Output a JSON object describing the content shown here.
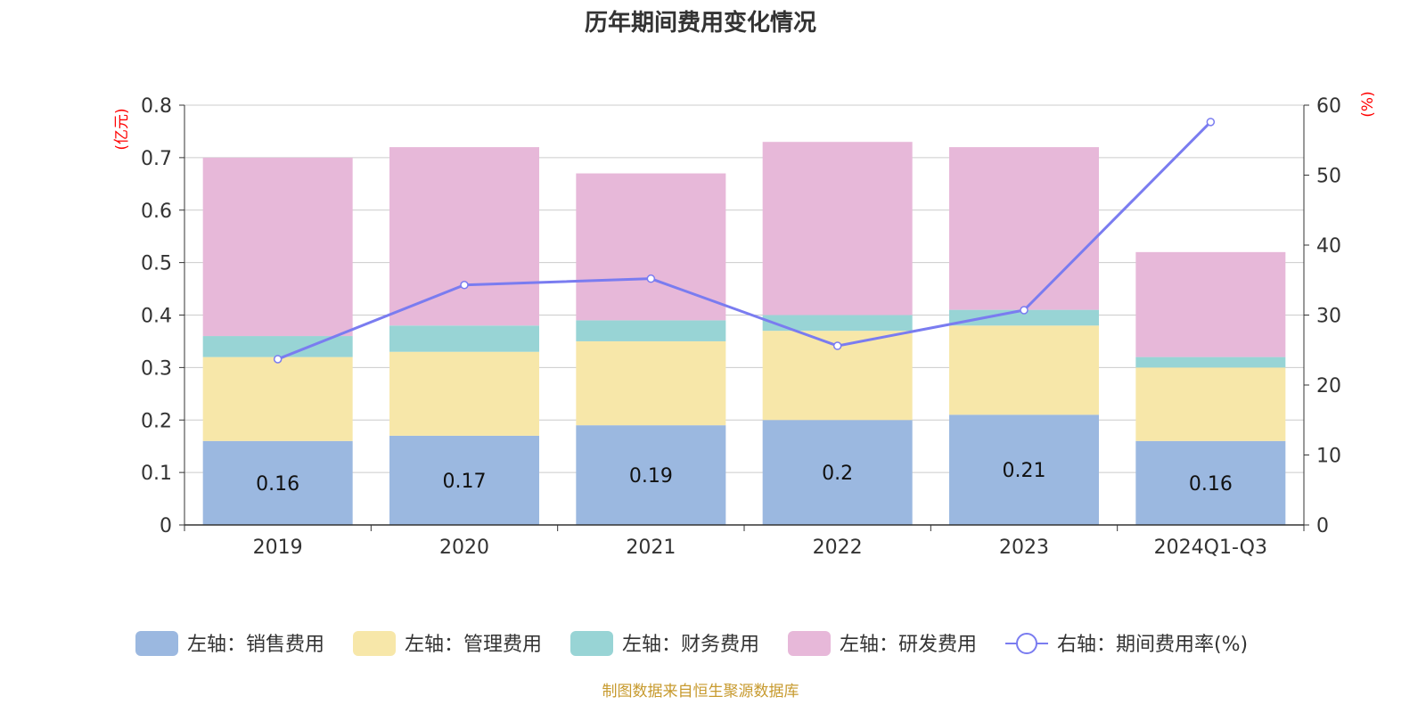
{
  "chart_data": {
    "type": "bar",
    "title": "历年期间费用变化情况",
    "categories": [
      "2019",
      "2020",
      "2021",
      "2022",
      "2023",
      "2024Q1-Q3"
    ],
    "left_axis": {
      "unit": "(亿元)",
      "ylim": [
        0,
        0.8
      ],
      "ticks": [
        "0",
        "0.1",
        "0.2",
        "0.3",
        "0.4",
        "0.5",
        "0.6",
        "0.7",
        "0.8"
      ]
    },
    "right_axis": {
      "unit": "(%)",
      "ylim": [
        0,
        60
      ],
      "ticks": [
        "0",
        "10",
        "20",
        "30",
        "40",
        "50",
        "60"
      ]
    },
    "series": [
      {
        "name": "左轴：销售费用",
        "type": "bar",
        "axis": "left",
        "color": "#9bb8e0",
        "values": [
          0.16,
          0.17,
          0.19,
          0.2,
          0.21,
          0.16
        ],
        "labels": [
          "0.16",
          "0.17",
          "0.19",
          "0.2",
          "0.21",
          "0.16"
        ]
      },
      {
        "name": "左轴：管理费用",
        "type": "bar",
        "axis": "left",
        "color": "#f7e7a9",
        "values": [
          0.16,
          0.16,
          0.16,
          0.17,
          0.17,
          0.14
        ]
      },
      {
        "name": "左轴：财务费用",
        "type": "bar",
        "axis": "left",
        "color": "#98d4d5",
        "values": [
          0.04,
          0.05,
          0.04,
          0.03,
          0.03,
          0.02
        ]
      },
      {
        "name": "左轴：研发费用",
        "type": "bar",
        "axis": "left",
        "color": "#e7b8d9",
        "values": [
          0.34,
          0.34,
          0.28,
          0.33,
          0.31,
          0.2
        ]
      },
      {
        "name": "右轴：期间费用率(%)",
        "type": "line",
        "axis": "right",
        "color": "#7a7cf0",
        "values": [
          23.7,
          34.3,
          35.2,
          25.6,
          30.7,
          57.6
        ]
      }
    ],
    "grid": true,
    "legend_position": "bottom",
    "source_note": "制图数据来自恒生聚源数据库"
  }
}
